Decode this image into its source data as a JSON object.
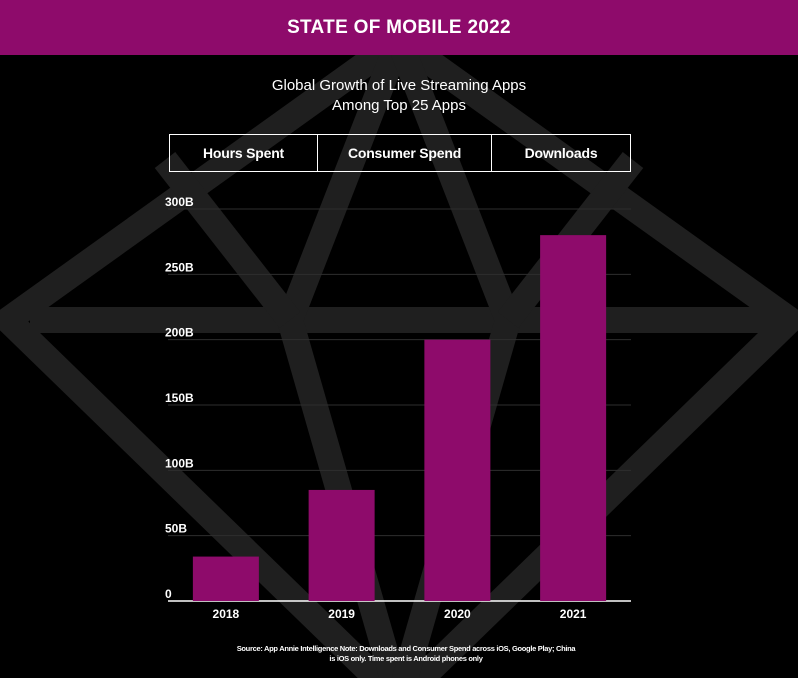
{
  "header": {
    "title": "STATE OF MOBILE 2022"
  },
  "colors": {
    "brand": "#8e0b6b",
    "background": "#000000",
    "watermark": "#1f1f1f"
  },
  "tabs": [
    {
      "label": "Hours Spent",
      "selected": false
    },
    {
      "label": "Consumer Spend",
      "selected": false
    },
    {
      "label": "Downloads",
      "selected": true
    }
  ],
  "chart_data": {
    "type": "bar",
    "title": "Global Growth of Live Streaming Apps",
    "subtitle": "Among Top 25 Apps",
    "categories": [
      "2018",
      "2019",
      "2020",
      "2021"
    ],
    "series": [
      {
        "values": [
          34,
          85,
          200,
          280
        ]
      }
    ],
    "value_unit": "B",
    "ylim": [
      0,
      300
    ],
    "yticks": [
      0,
      50,
      100,
      150,
      200,
      250,
      300
    ],
    "ytick_labels": [
      "0",
      "50B",
      "100B",
      "150B",
      "200B",
      "250B",
      "300B"
    ],
    "grid": true,
    "bar_color": "#8e0b6b"
  },
  "footer": {
    "source_line1": "Source: App Annie Intelligence Note: Downloads and Consumer Spend across iOS, Google Play; China",
    "source_line2": "is iOS only. Time spent is Android phones only"
  }
}
